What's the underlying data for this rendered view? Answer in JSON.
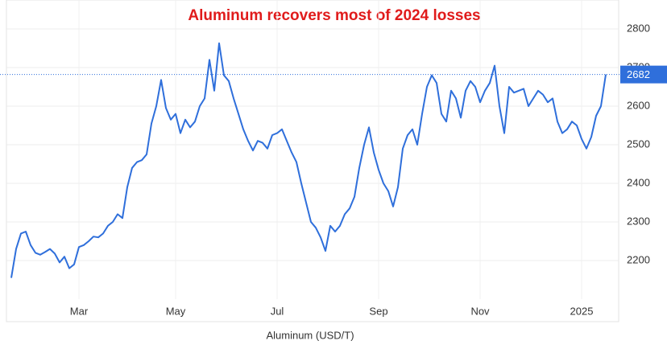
{
  "chart_data": {
    "type": "line",
    "title": "Aluminum recovers most of 2024 losses",
    "xlabel": "Aluminum (USD/T)",
    "color": "#2f6fdb",
    "grid": true,
    "ylim": [
      2100,
      2875
    ],
    "yticks": [
      2200,
      2300,
      2400,
      2500,
      2600,
      2700,
      2800
    ],
    "categories": [
      null,
      null,
      null,
      null,
      null,
      null,
      null,
      null,
      null,
      null,
      null,
      null,
      null,
      null,
      "Mar",
      null,
      null,
      null,
      null,
      null,
      null,
      null,
      null,
      null,
      null,
      null,
      null,
      null,
      null,
      null,
      null,
      null,
      null,
      null,
      "May",
      null,
      null,
      null,
      null,
      null,
      null,
      null,
      null,
      null,
      null,
      null,
      null,
      null,
      null,
      null,
      null,
      null,
      null,
      null,
      null,
      "Jul",
      null,
      null,
      null,
      null,
      null,
      null,
      null,
      null,
      null,
      null,
      null,
      null,
      null,
      null,
      null,
      null,
      null,
      null,
      null,
      null,
      "Sep",
      null,
      null,
      null,
      null,
      null,
      null,
      null,
      null,
      null,
      null,
      null,
      null,
      null,
      null,
      null,
      null,
      null,
      null,
      null,
      null,
      "Nov",
      null,
      null,
      null,
      null,
      null,
      null,
      null,
      null,
      null,
      null,
      null,
      null,
      null,
      null,
      null,
      null,
      null,
      null,
      null,
      null,
      "2025",
      null,
      null,
      null,
      null,
      null
    ],
    "values": [
      2155,
      2230,
      2270,
      2275,
      2240,
      2220,
      2215,
      2222,
      2230,
      2218,
      2195,
      2210,
      2180,
      2190,
      2235,
      2240,
      2250,
      2262,
      2260,
      2270,
      2290,
      2300,
      2320,
      2310,
      2390,
      2440,
      2455,
      2460,
      2475,
      2555,
      2600,
      2668,
      2595,
      2565,
      2580,
      2530,
      2565,
      2545,
      2560,
      2600,
      2620,
      2720,
      2640,
      2763,
      2680,
      2665,
      2620,
      2580,
      2540,
      2510,
      2485,
      2510,
      2505,
      2490,
      2525,
      2530,
      2540,
      2510,
      2480,
      2455,
      2400,
      2350,
      2300,
      2285,
      2260,
      2225,
      2290,
      2275,
      2290,
      2320,
      2335,
      2365,
      2440,
      2500,
      2545,
      2480,
      2435,
      2400,
      2380,
      2340,
      2390,
      2490,
      2525,
      2540,
      2500,
      2580,
      2650,
      2680,
      2660,
      2580,
      2560,
      2640,
      2620,
      2570,
      2640,
      2665,
      2650,
      2610,
      2640,
      2660,
      2705,
      2600,
      2530,
      2650,
      2635,
      2640,
      2645,
      2600,
      2620,
      2640,
      2630,
      2610,
      2620,
      2560,
      2530,
      2540,
      2560,
      2550,
      2515,
      2490,
      2520,
      2575,
      2600,
      2682
    ]
  }
}
